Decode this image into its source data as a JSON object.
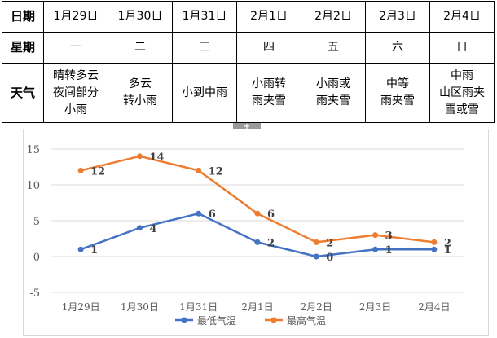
{
  "table": {
    "row_headers": {
      "date": "日期",
      "weekday": "星期",
      "weather": "天气"
    },
    "dates": [
      "1月29日",
      "1月30日",
      "1月31日",
      "2月1日",
      "2月2日",
      "2月3日",
      "2月4日"
    ],
    "weekdays": [
      "一",
      "二",
      "三",
      "四",
      "五",
      "六",
      "日"
    ],
    "weather": [
      [
        "晴转多云",
        "夜间部分",
        "小雨"
      ],
      [
        "多云",
        "转小雨"
      ],
      [
        "小到中雨"
      ],
      [
        "小雨转",
        "雨夹雪"
      ],
      [
        "小雨或",
        "雨夹雪"
      ],
      [
        "中等",
        "雨夹雪"
      ],
      [
        "中雨",
        "山区雨夹",
        "雪或雪"
      ]
    ]
  },
  "resize_handle_icon": "plus-icon",
  "chart_data": {
    "type": "line",
    "categories": [
      "1月29日",
      "1月30日",
      "1月31日",
      "2月1日",
      "2月2日",
      "2月3日",
      "2月4日"
    ],
    "series": [
      {
        "name": "最低气温",
        "color": "#4472c4",
        "values": [
          1,
          4,
          6,
          2,
          0,
          1,
          1
        ]
      },
      {
        "name": "最高气温",
        "color": "#ed7d31",
        "values": [
          12,
          14,
          12,
          6,
          2,
          3,
          2
        ]
      }
    ],
    "y_ticks": [
      "15",
      "10",
      "5",
      "0",
      "-5"
    ],
    "ylim": [
      -5,
      15
    ],
    "grid": true,
    "legend_position": "bottom"
  }
}
